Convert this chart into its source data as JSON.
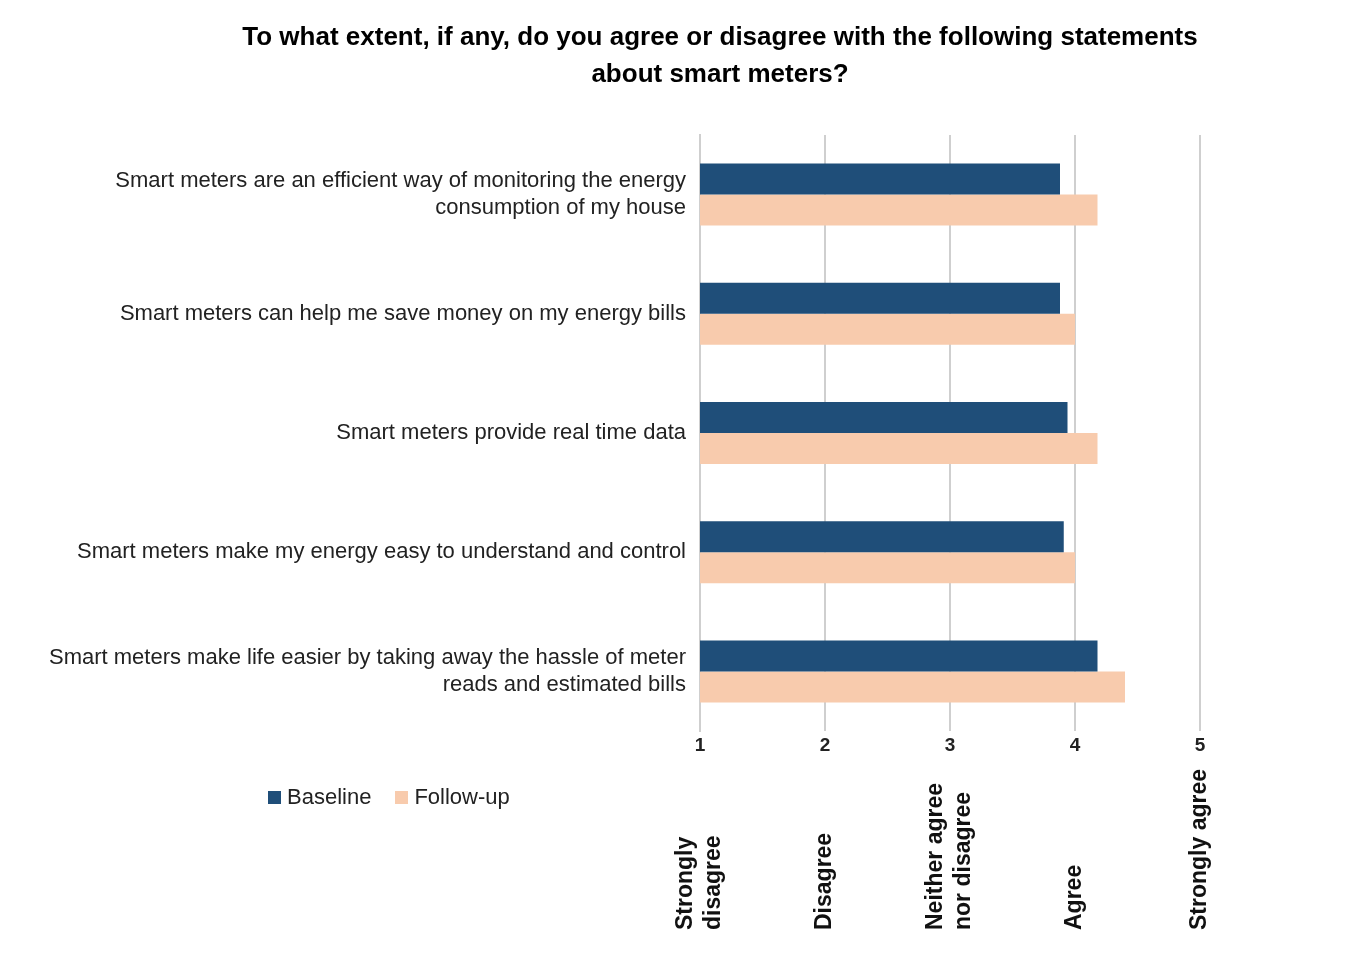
{
  "chart_data": {
    "type": "bar",
    "orientation": "horizontal",
    "title": "To what extent, if any, do you agree or disagree with the following statements about smart meters?",
    "categories": [
      "Smart meters are an efficient way of monitoring the energy consumption of my house",
      "Smart meters can help me save money on my energy bills",
      "Smart meters provide real time data",
      "Smart meters make my energy easy to understand and control",
      "Smart meters make life easier by taking away the hassle of meter reads and estimated bills"
    ],
    "series": [
      {
        "name": "Baseline",
        "color": "#1f4e79",
        "values": [
          3.88,
          3.88,
          3.94,
          3.91,
          4.18
        ]
      },
      {
        "name": "Follow-up",
        "color": "#f8cbad",
        "values": [
          4.18,
          4.0,
          4.18,
          4.0,
          4.4
        ]
      }
    ],
    "xlim": [
      1,
      5
    ],
    "xticks": [
      1,
      2,
      3,
      4,
      5
    ],
    "grid": "x",
    "legend": "bottom left",
    "annotations": [
      "Strongly disagree",
      "Disagree",
      "Neither agree nor disagree",
      "Agree",
      "Strongly agree"
    ]
  }
}
